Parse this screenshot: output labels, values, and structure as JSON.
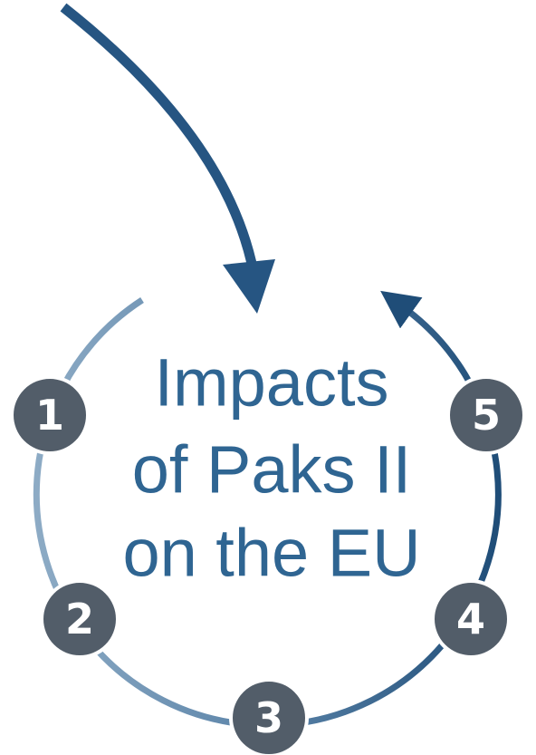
{
  "title_lines": [
    "Impacts",
    "of Paks II",
    "on the EU"
  ],
  "nodes": [
    {
      "label": "1"
    },
    {
      "label": "2"
    },
    {
      "label": "3"
    },
    {
      "label": "4"
    },
    {
      "label": "5"
    }
  ]
}
